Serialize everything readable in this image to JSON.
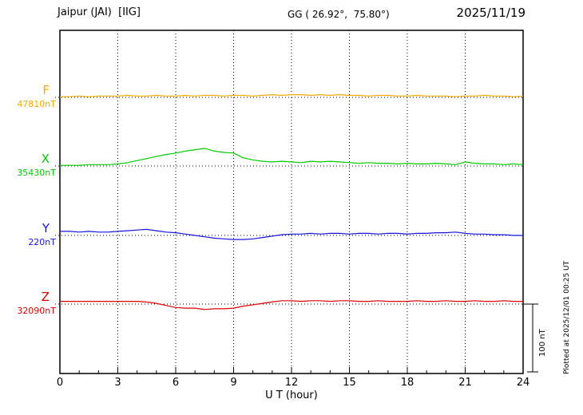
{
  "header": {
    "station": "Jaipur (JAI)  [IIG]",
    "gg": "GG ( 26.92°,  75.80°)",
    "date": "2025/11/19"
  },
  "axis": {
    "xlabel": "U T (hour)",
    "ticks": [
      0,
      3,
      6,
      9,
      12,
      15,
      18,
      21,
      24
    ],
    "xlim": [
      0,
      24
    ]
  },
  "scalebar": {
    "label": "100 nT",
    "value_nT": 100
  },
  "footer": {
    "plotted_note": "Plotted at 2025/12/01 00:25 UT"
  },
  "chart_data": {
    "type": "line",
    "title": "Jaipur (JAI) [IIG] magnetogram 2025/11/19",
    "xlabel": "U T (hour)",
    "xlim": [
      0,
      24
    ],
    "x_start": 0,
    "x_step": 0.5,
    "grid": "dotted vertical every 3 h, dotted horizontal baseline per component",
    "scale_bar_nT": 100,
    "series": [
      {
        "name": "F",
        "base_value_label": "47810nT",
        "color": "#f5a800",
        "offsets_nT": [
          1,
          1,
          2,
          1,
          2,
          2,
          2,
          3,
          2,
          2,
          3,
          2,
          2,
          3,
          2,
          3,
          3,
          2,
          3,
          3,
          2,
          3,
          4,
          3,
          4,
          4,
          3,
          4,
          3,
          4,
          3,
          3,
          2,
          3,
          3,
          2,
          2,
          3,
          2,
          2,
          2,
          1,
          2,
          2,
          3,
          2,
          2,
          1,
          2
        ]
      },
      {
        "name": "X",
        "base_value_label": "35430nT",
        "color": "#00cc00",
        "offsets_nT": [
          1,
          1,
          1,
          2,
          2,
          2,
          3,
          5,
          8,
          11,
          14,
          17,
          19,
          22,
          24,
          26,
          22,
          20,
          19,
          12,
          9,
          7,
          6,
          7,
          6,
          5,
          7,
          6,
          7,
          6,
          5,
          4,
          5,
          4,
          4,
          3,
          4,
          3,
          3,
          4,
          3,
          2,
          6,
          4,
          3,
          3,
          2,
          3,
          2
        ]
      },
      {
        "name": "Y",
        "base_value_label": "220nT",
        "color": "#1515dd",
        "offsets_nT": [
          6,
          6,
          5,
          6,
          5,
          5,
          6,
          7,
          8,
          9,
          7,
          5,
          4,
          2,
          0,
          -2,
          -4,
          -5,
          -6,
          -6,
          -5,
          -3,
          -1,
          1,
          2,
          2,
          3,
          2,
          3,
          3,
          2,
          3,
          3,
          2,
          3,
          3,
          2,
          3,
          3,
          4,
          4,
          5,
          3,
          2,
          2,
          1,
          1,
          0,
          0
        ]
      },
      {
        "name": "Z",
        "base_value_label": "32090nT",
        "color": "#dd0000",
        "offsets_nT": [
          4,
          4,
          4,
          4,
          4,
          4,
          4,
          4,
          4,
          3,
          1,
          -2,
          -5,
          -6,
          -6,
          -8,
          -7,
          -7,
          -6,
          -3,
          -1,
          1,
          3,
          5,
          5,
          4,
          5,
          5,
          4,
          5,
          5,
          4,
          4,
          5,
          4,
          4,
          4,
          5,
          4,
          4,
          5,
          4,
          4,
          5,
          4,
          4,
          5,
          4,
          4
        ]
      }
    ]
  }
}
